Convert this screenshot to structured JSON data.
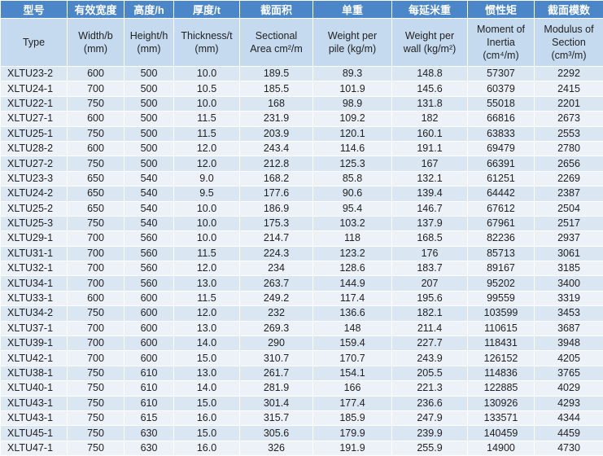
{
  "table": {
    "header_cn": [
      "型号",
      "有效宽度",
      "高度/h",
      "厚度/t",
      "截面积",
      "单重",
      "每延米重",
      "惯性矩",
      "截面模数"
    ],
    "header_en": [
      "Type",
      "Width/b\n(mm)",
      "Height/h\n(mm)",
      "Thickness/t\n(mm)",
      "Sectional\nArea cm²/m",
      "Weight per\npile    (kg/m)",
      "Weight per\nwall (kg/m²)",
      "Moment of\nInertia\n(cm⁴/m)",
      "Modulus of\nSection\n(cm³/m)"
    ],
    "rows": [
      [
        "XLTU23-2",
        "600",
        "500",
        "10.0",
        "189.5",
        "89.3",
        "148.8",
        "57307",
        "2292"
      ],
      [
        "XLTU24-1",
        "700",
        "500",
        "10.5",
        "185.5",
        "101.9",
        "145.6",
        "60379",
        "2415"
      ],
      [
        "XLTU22-1",
        "750",
        "500",
        "10.0",
        "168",
        "98.9",
        "131.8",
        "55018",
        "2201"
      ],
      [
        "XLTU27-1",
        "600",
        "500",
        "11.5",
        "231.9",
        "109.2",
        "182",
        "66816",
        "2673"
      ],
      [
        "XLTU25-1",
        "750",
        "500",
        "11.5",
        "203.9",
        "120.1",
        "160.1",
        "63833",
        "2553"
      ],
      [
        "XLTU28-2",
        "600",
        "500",
        "12.0",
        "243.4",
        "114.6",
        "191.1",
        "69479",
        "2780"
      ],
      [
        "XLTU27-2",
        "750",
        "500",
        "12.0",
        "212.8",
        "125.3",
        "167",
        "66391",
        "2656"
      ],
      [
        "XLTU23-3",
        "650",
        "540",
        "9.0",
        "168.2",
        "85.8",
        "132.1",
        "61251",
        "2269"
      ],
      [
        "XLTU24-2",
        "650",
        "540",
        "9.5",
        "177.6",
        "90.6",
        "139.4",
        "64442",
        "2387"
      ],
      [
        "XLTU25-2",
        "650",
        "540",
        "10.0",
        "186.9",
        "95.4",
        "146.7",
        "67612",
        "2504"
      ],
      [
        "XLTU25-3",
        "750",
        "540",
        "10.0",
        "175.3",
        "103.2",
        "137.9",
        "67961",
        "2517"
      ],
      [
        "XLTU29-1",
        "700",
        "560",
        "10.0",
        "214.7",
        "118",
        "168.5",
        "82236",
        "2937"
      ],
      [
        "XLTU31-1",
        "700",
        "560",
        "11.5",
        "224.3",
        "123.2",
        "176",
        "85713",
        "3061"
      ],
      [
        "XLTU32-1",
        "700",
        "560",
        "12.0",
        "234",
        "128.6",
        "183.7",
        "89167",
        "3185"
      ],
      [
        "XLTU34-1",
        "700",
        "560",
        "13.0",
        "263.7",
        "144.9",
        "207",
        "95202",
        "3400"
      ],
      [
        "XLTU33-1",
        "600",
        "600",
        "11.5",
        "249.2",
        "117.4",
        "195.6",
        "99559",
        "3319"
      ],
      [
        "XLTU34-2",
        "750",
        "600",
        "12.0",
        "232",
        "136.6",
        "182.1",
        "103599",
        "3453"
      ],
      [
        "XLTU37-1",
        "700",
        "600",
        "13.0",
        "269.3",
        "148",
        "211.4",
        "110615",
        "3687"
      ],
      [
        "XLTU39-1",
        "700",
        "600",
        "14.0",
        "290",
        "159.4",
        "227.7",
        "118431",
        "3948"
      ],
      [
        "XLTU42-1",
        "700",
        "600",
        "15.0",
        "310.7",
        "170.7",
        "243.9",
        "126152",
        "4205"
      ],
      [
        "XLTU38-1",
        "750",
        "610",
        "13.0",
        "261.7",
        "154.1",
        "205.5",
        "114836",
        "3765"
      ],
      [
        "XLTU40-1",
        "750",
        "610",
        "14.0",
        "281.9",
        "166",
        "221.3",
        "122885",
        "4029"
      ],
      [
        "XLTU43-1",
        "750",
        "610",
        "15.0",
        "301.4",
        "177.4",
        "236.6",
        "130926",
        "4293"
      ],
      [
        "XLTU43-1",
        "750",
        "615",
        "16.0",
        "315.7",
        "185.9",
        "247.9",
        "133571",
        "4344"
      ],
      [
        "XLTU45-1",
        "750",
        "630",
        "15.0",
        "305.6",
        "179.9",
        "239.9",
        "140459",
        "4459"
      ],
      [
        "XLTU47-1",
        "750",
        "630",
        "16.0",
        "326",
        "191.9",
        "255.9",
        "14900",
        "4730"
      ]
    ]
  }
}
